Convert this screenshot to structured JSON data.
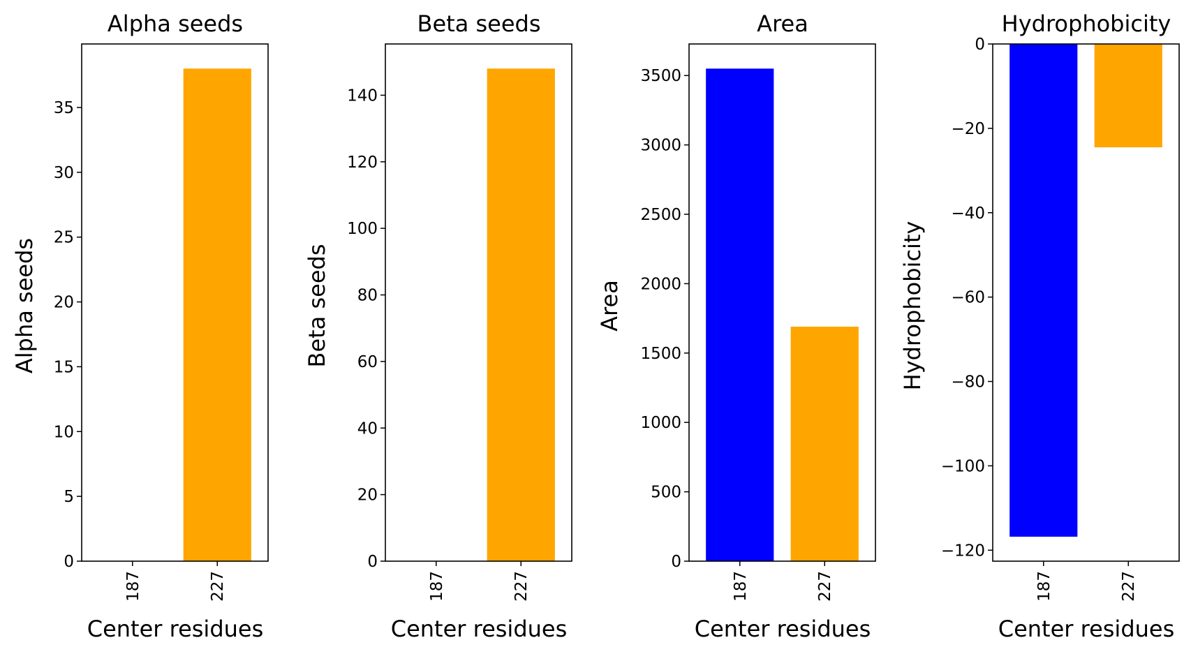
{
  "colors": {
    "series_187": "#0000ff",
    "series_227": "#ffa500",
    "axis": "#000000",
    "background": "#ffffff"
  },
  "chart_data": [
    {
      "type": "bar",
      "title": "Alpha seeds",
      "xlabel": "Center residues",
      "ylabel": "Alpha seeds",
      "categories": [
        "187",
        "227"
      ],
      "values": [
        0,
        38
      ],
      "bar_colors": [
        "#0000ff",
        "#ffa500"
      ],
      "ylim": [
        0,
        39.9
      ],
      "yticks": [
        0,
        5,
        10,
        15,
        20,
        25,
        30,
        35
      ],
      "ytick_labels": [
        "0",
        "5",
        "10",
        "15",
        "20",
        "25",
        "30",
        "35"
      ],
      "grid": false
    },
    {
      "type": "bar",
      "title": "Beta seeds",
      "xlabel": "Center residues",
      "ylabel": "Beta seeds",
      "categories": [
        "187",
        "227"
      ],
      "values": [
        0,
        148
      ],
      "bar_colors": [
        "#0000ff",
        "#ffa500"
      ],
      "ylim": [
        0,
        155.4
      ],
      "yticks": [
        0,
        20,
        40,
        60,
        80,
        100,
        120,
        140
      ],
      "ytick_labels": [
        "0",
        "20",
        "40",
        "60",
        "80",
        "100",
        "120",
        "140"
      ],
      "grid": false
    },
    {
      "type": "bar",
      "title": "Area",
      "xlabel": "Center residues",
      "ylabel": "Area",
      "categories": [
        "187",
        "227"
      ],
      "values": [
        3550,
        1690
      ],
      "bar_colors": [
        "#0000ff",
        "#ffa500"
      ],
      "ylim": [
        0,
        3727.5
      ],
      "yticks": [
        0,
        500,
        1000,
        1500,
        2000,
        2500,
        3000,
        3500
      ],
      "ytick_labels": [
        "0",
        "500",
        "1000",
        "1500",
        "2000",
        "2500",
        "3000",
        "3500"
      ],
      "grid": false
    },
    {
      "type": "bar",
      "title": "Hydrophobicity",
      "xlabel": "Center residues",
      "ylabel": "Hydrophobicity",
      "categories": [
        "187",
        "227"
      ],
      "values": [
        -116.8,
        -24.5
      ],
      "bar_colors": [
        "#0000ff",
        "#ffa500"
      ],
      "ylim": [
        -122.6,
        0
      ],
      "yticks": [
        0,
        -20,
        -40,
        -60,
        -80,
        -100,
        -120
      ],
      "ytick_labels": [
        "0",
        "−20",
        "−40",
        "−60",
        "−80",
        "−100",
        "−120"
      ],
      "grid": false
    }
  ]
}
